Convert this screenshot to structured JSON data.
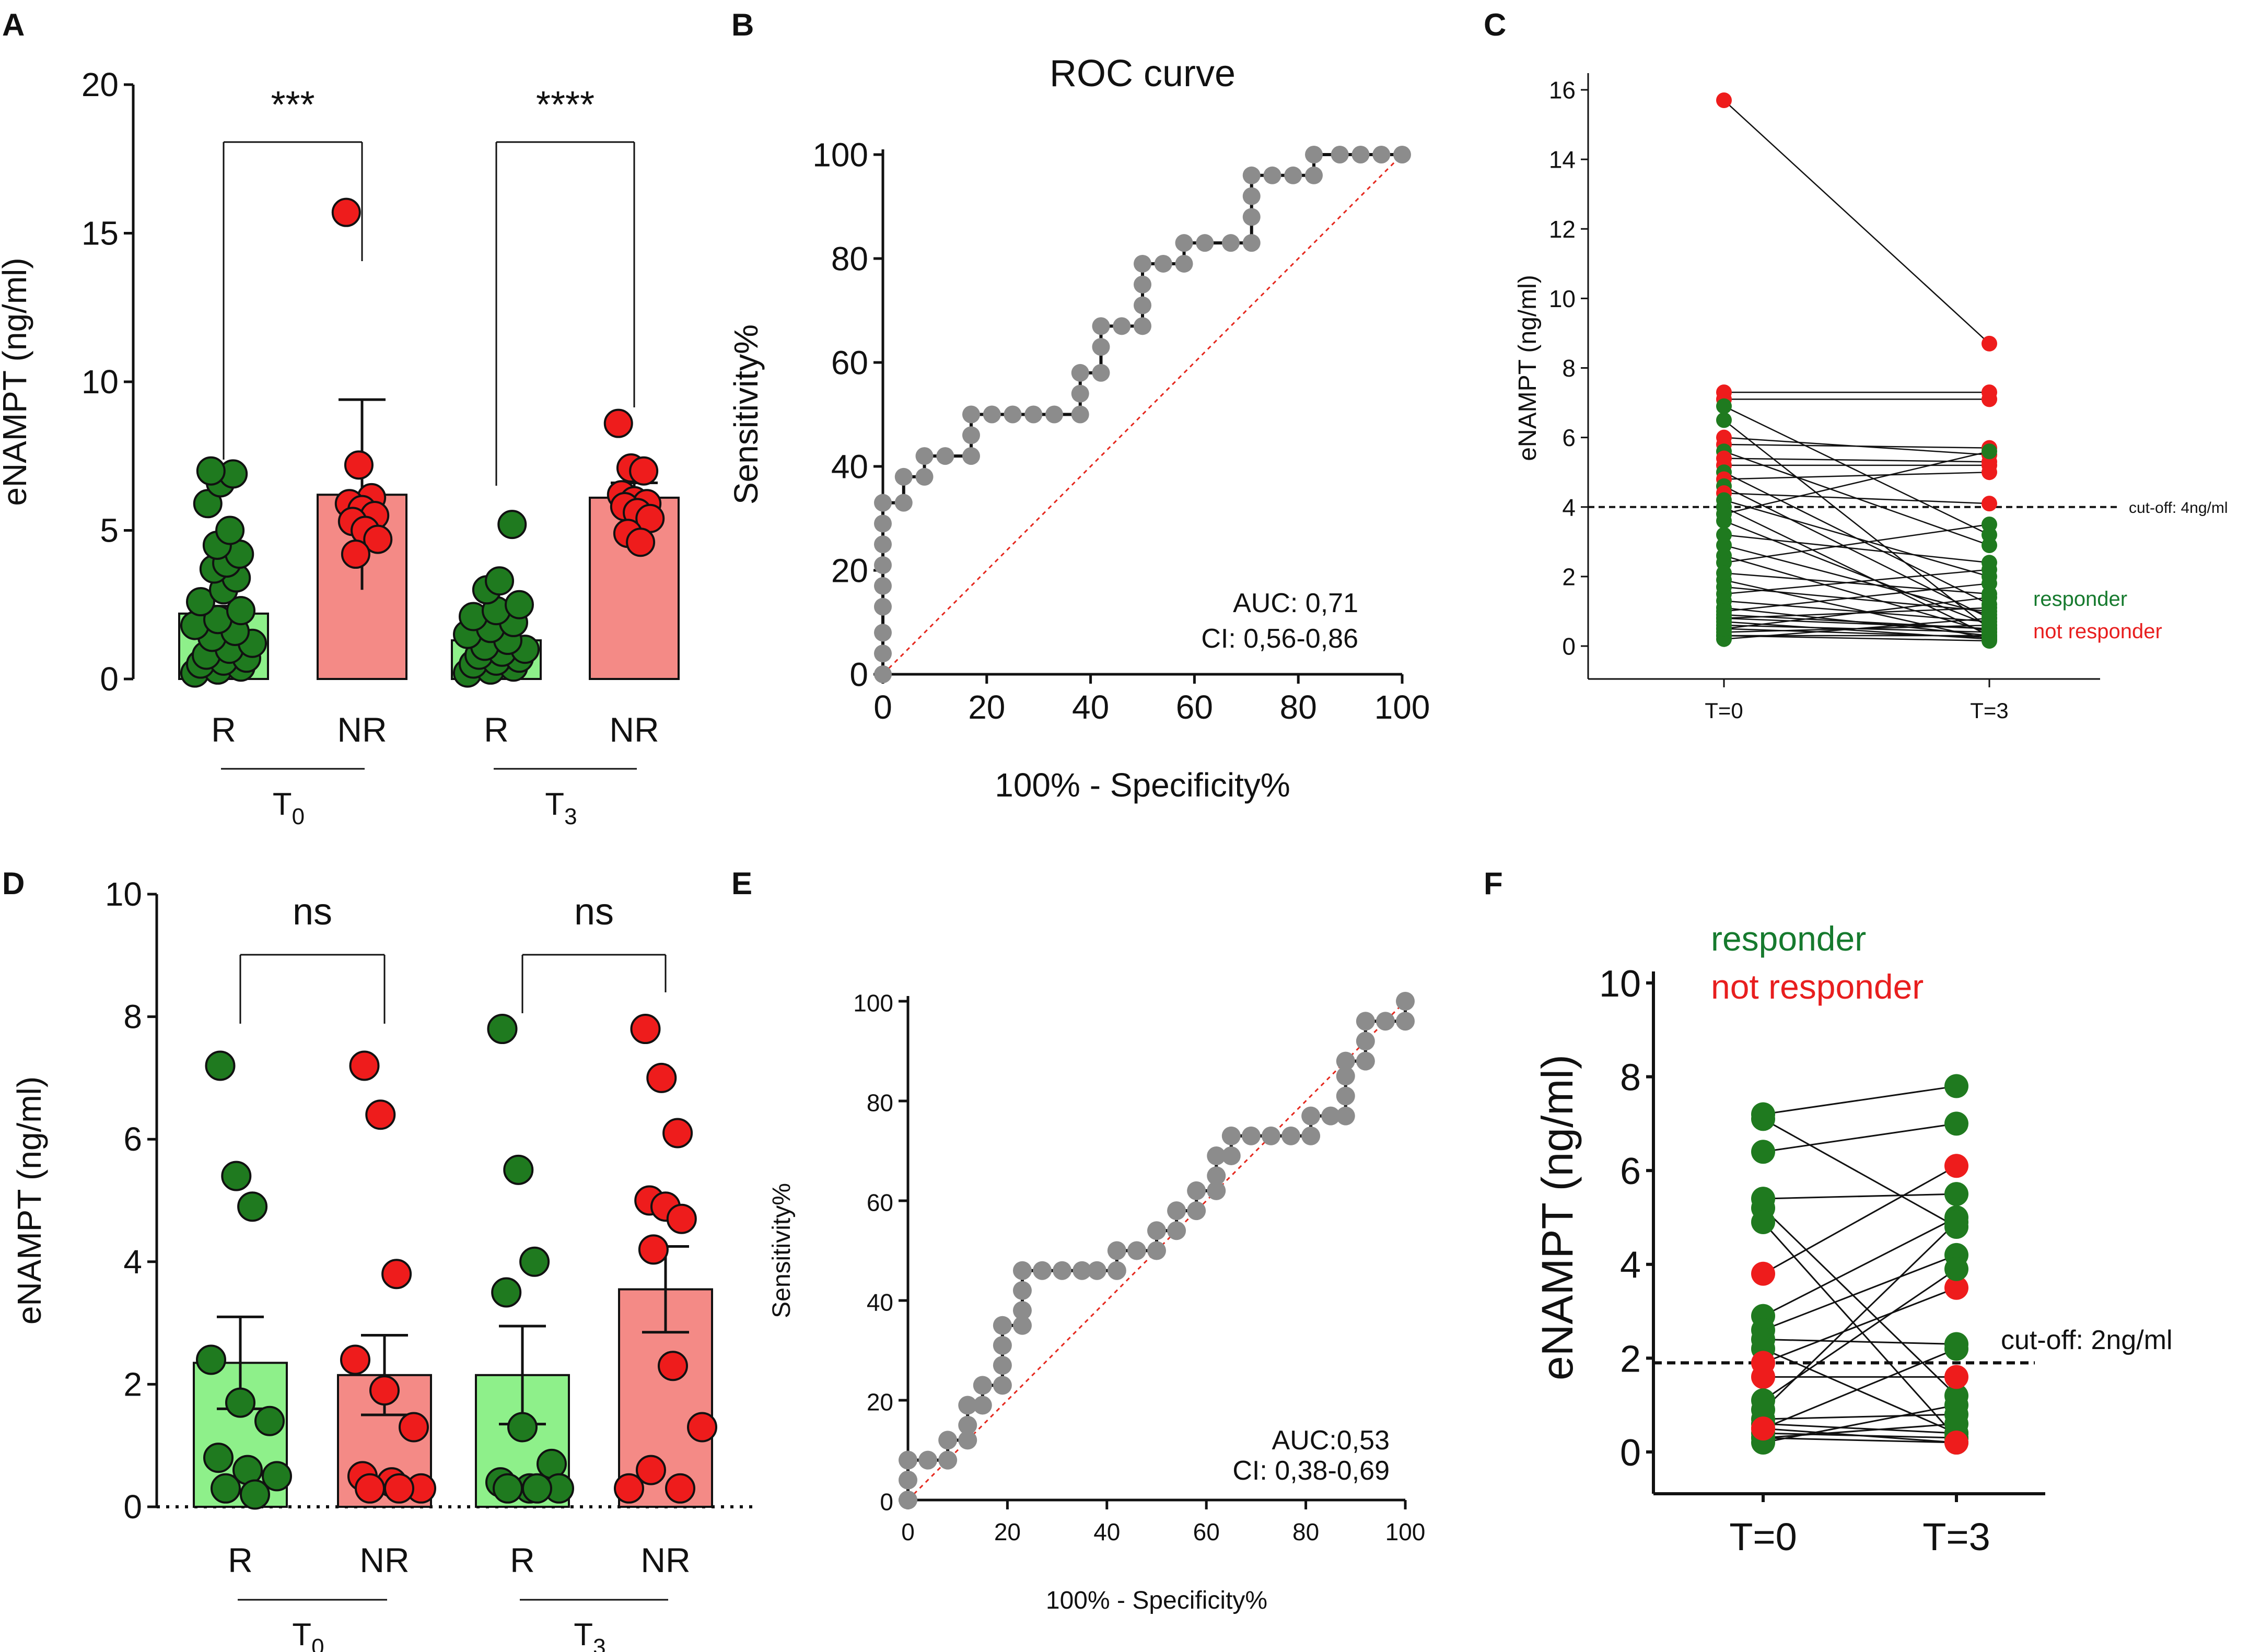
{
  "colors": {
    "green": "#1f7a1f",
    "red": "#ee1c1c",
    "green_bar": "#8ef08a",
    "red_bar": "#f48a86",
    "roc_marker": "#8c8c8c",
    "reference": "#e5281e",
    "legend_green": "#167a2e",
    "legend_red": "#e81e1e"
  },
  "chart_data": [
    {
      "panel": "A",
      "type": "bar",
      "ylabel": "eNAMPT (ng/ml)",
      "ylim": [
        0,
        20
      ],
      "yticks": [
        0,
        5,
        10,
        15,
        20
      ],
      "categories": [
        "R",
        "NR",
        "R",
        "NR"
      ],
      "groups": [
        {
          "label": "T",
          "sub": "0"
        },
        {
          "label": "T",
          "sub": "3"
        }
      ],
      "values": [
        2.2,
        6.2,
        1.3,
        6.1
      ],
      "errors": [
        0.25,
        3.2,
        0.15,
        0.5
      ],
      "points": [
        [
          0.2,
          0.3,
          0.4,
          0.5,
          0.6,
          0.7,
          0.8,
          1.0,
          1.2,
          1.4,
          1.6,
          1.8,
          2.0,
          2.3,
          2.6,
          3.0,
          3.4,
          3.7,
          3.9,
          4.2,
          4.5,
          5.0,
          5.9,
          6.6,
          6.9,
          7.0
        ],
        [
          15.7,
          7.2,
          6.1,
          5.9,
          5.7,
          5.5,
          5.3,
          5.0,
          4.7,
          4.2
        ],
        [
          0.2,
          0.3,
          0.4,
          0.5,
          0.6,
          0.7,
          0.8,
          0.9,
          1.0,
          1.1,
          1.3,
          1.5,
          1.7,
          1.9,
          2.1,
          2.3,
          2.5,
          3.0,
          3.3,
          5.2
        ],
        [
          8.6,
          7.1,
          7.0,
          6.2,
          6.0,
          5.9,
          5.8,
          5.6,
          5.4,
          4.9,
          4.6
        ]
      ],
      "significance": [
        "***",
        "****"
      ]
    },
    {
      "panel": "B",
      "type": "line",
      "title": "ROC curve",
      "xlabel": "100% - Specificity%",
      "ylabel": "Sensitivity%",
      "xlim": [
        0,
        100
      ],
      "ylim": [
        0,
        100
      ],
      "xticks": [
        0,
        20,
        40,
        60,
        80,
        100
      ],
      "yticks": [
        0,
        20,
        40,
        60,
        80,
        100
      ],
      "roc": [
        [
          0,
          0
        ],
        [
          0,
          4
        ],
        [
          0,
          8
        ],
        [
          0,
          13
        ],
        [
          0,
          17
        ],
        [
          0,
          21
        ],
        [
          0,
          25
        ],
        [
          0,
          29
        ],
        [
          0,
          33
        ],
        [
          4,
          33
        ],
        [
          4,
          38
        ],
        [
          8,
          38
        ],
        [
          8,
          42
        ],
        [
          12,
          42
        ],
        [
          17,
          42
        ],
        [
          17,
          46
        ],
        [
          17,
          50
        ],
        [
          21,
          50
        ],
        [
          25,
          50
        ],
        [
          29,
          50
        ],
        [
          33,
          50
        ],
        [
          38,
          50
        ],
        [
          38,
          54
        ],
        [
          38,
          58
        ],
        [
          42,
          58
        ],
        [
          42,
          63
        ],
        [
          42,
          67
        ],
        [
          46,
          67
        ],
        [
          50,
          67
        ],
        [
          50,
          71
        ],
        [
          50,
          75
        ],
        [
          50,
          79
        ],
        [
          54,
          79
        ],
        [
          58,
          79
        ],
        [
          58,
          83
        ],
        [
          62,
          83
        ],
        [
          67,
          83
        ],
        [
          71,
          83
        ],
        [
          71,
          88
        ],
        [
          71,
          92
        ],
        [
          71,
          96
        ],
        [
          75,
          96
        ],
        [
          79,
          96
        ],
        [
          83,
          96
        ],
        [
          83,
          100
        ],
        [
          88,
          100
        ],
        [
          92,
          100
        ],
        [
          96,
          100
        ],
        [
          100,
          100
        ]
      ],
      "annotations": [
        "AUC: 0,71",
        "CI: 0,56-0,86"
      ]
    },
    {
      "panel": "C",
      "type": "line",
      "ylabel": "eNAMPT (ng/ml)",
      "ylim": [
        0,
        16
      ],
      "yticks": [
        0,
        2,
        4,
        6,
        8,
        10,
        12,
        14,
        16
      ],
      "categories": [
        "T=0",
        "T=3"
      ],
      "cutoff": 4,
      "cutoff_label": "cut-off: 4ng/ml",
      "legend": [
        "responder",
        "not responder"
      ],
      "pairs": [
        {
          "t0": 15.7,
          "t3": 8.7,
          "g": "nr"
        },
        {
          "t0": 7.3,
          "t3": 7.3,
          "g": "nr"
        },
        {
          "t0": 7.1,
          "t3": 7.1,
          "g": "nr"
        },
        {
          "t0": 6.9,
          "t3": 3.2,
          "g": "r"
        },
        {
          "t0": 6.5,
          "t3": 0.5,
          "g": "r"
        },
        {
          "t0": 6.0,
          "t3": 5.5,
          "g": "nr"
        },
        {
          "t0": 5.8,
          "t3": 5.7,
          "g": "nr"
        },
        {
          "t0": 5.6,
          "t3": 2.9,
          "g": "r"
        },
        {
          "t0": 5.4,
          "t3": 5.3,
          "g": "nr"
        },
        {
          "t0": 5.2,
          "t3": 5.2,
          "g": "nr"
        },
        {
          "t0": 5.0,
          "t3": 1.2,
          "g": "r"
        },
        {
          "t0": 4.8,
          "t3": 5.0,
          "g": "nr"
        },
        {
          "t0": 4.6,
          "t3": 0.8,
          "g": "r"
        },
        {
          "t0": 4.4,
          "t3": 4.1,
          "g": "nr"
        },
        {
          "t0": 4.2,
          "t3": 2.0,
          "g": "r"
        },
        {
          "t0": 4.0,
          "t3": 0.3,
          "g": "r"
        },
        {
          "t0": 3.8,
          "t3": 5.6,
          "g": "r"
        },
        {
          "t0": 3.6,
          "t3": 0.6,
          "g": "r"
        },
        {
          "t0": 3.2,
          "t3": 2.4,
          "g": "r"
        },
        {
          "t0": 2.9,
          "t3": 0.9,
          "g": "r"
        },
        {
          "t0": 2.6,
          "t3": 0.4,
          "g": "r"
        },
        {
          "t0": 2.4,
          "t3": 3.5,
          "g": "r"
        },
        {
          "t0": 2.1,
          "t3": 1.5,
          "g": "r"
        },
        {
          "t0": 1.9,
          "t3": 0.2,
          "g": "r"
        },
        {
          "t0": 1.7,
          "t3": 1.0,
          "g": "r"
        },
        {
          "t0": 1.5,
          "t3": 2.2,
          "g": "r"
        },
        {
          "t0": 1.3,
          "t3": 0.7,
          "g": "r"
        },
        {
          "t0": 1.1,
          "t3": 0.3,
          "g": "r"
        },
        {
          "t0": 1.0,
          "t3": 1.8,
          "g": "r"
        },
        {
          "t0": 0.9,
          "t3": 0.5,
          "g": "r"
        },
        {
          "t0": 0.8,
          "t3": 1.1,
          "g": "r"
        },
        {
          "t0": 0.7,
          "t3": 0.2,
          "g": "r"
        },
        {
          "t0": 0.6,
          "t3": 0.4,
          "g": "r"
        },
        {
          "t0": 0.5,
          "t3": 1.4,
          "g": "r"
        },
        {
          "t0": 0.4,
          "t3": 0.6,
          "g": "r"
        },
        {
          "t0": 0.3,
          "t3": 0.3,
          "g": "r"
        },
        {
          "t0": 0.2,
          "t3": 0.8,
          "g": "r"
        },
        {
          "t0": 0.3,
          "t3": 0.15,
          "g": "r"
        },
        {
          "t0": 0.5,
          "t3": 0.25,
          "g": "r"
        },
        {
          "t0": 0.8,
          "t3": 0.5,
          "g": "r"
        }
      ]
    },
    {
      "panel": "D",
      "type": "bar",
      "ylabel": "eNAMPT (ng/ml)",
      "ylim": [
        0,
        10
      ],
      "yticks": [
        0,
        2,
        4,
        6,
        8,
        10
      ],
      "categories": [
        "R",
        "NR",
        "R",
        "NR"
      ],
      "groups": [
        {
          "label": "T",
          "sub": "0"
        },
        {
          "label": "T",
          "sub": "3"
        }
      ],
      "values": [
        2.35,
        2.15,
        2.15,
        3.55
      ],
      "errors": [
        0.75,
        0.65,
        0.8,
        0.7
      ],
      "points": [
        [
          7.2,
          5.4,
          4.9,
          2.4,
          1.7,
          1.4,
          0.8,
          0.6,
          0.5,
          0.3,
          0.2
        ],
        [
          7.2,
          6.4,
          3.8,
          2.4,
          1.9,
          1.3,
          0.5,
          0.4,
          0.3,
          0.3,
          0.3
        ],
        [
          7.8,
          5.5,
          4.0,
          3.5,
          1.3,
          0.7,
          0.4,
          0.3,
          0.3,
          0.3,
          0.3
        ],
        [
          7.8,
          7.0,
          6.1,
          5.0,
          4.9,
          4.7,
          4.2,
          2.3,
          1.3,
          0.6,
          0.3,
          0.3
        ]
      ],
      "significance": [
        "ns",
        "ns"
      ]
    },
    {
      "panel": "E",
      "type": "line",
      "xlabel": "100% - Specificity%",
      "ylabel": "Sensitivity%",
      "xlim": [
        0,
        100
      ],
      "ylim": [
        0,
        100
      ],
      "xticks": [
        0,
        20,
        40,
        60,
        80,
        100
      ],
      "yticks": [
        0,
        20,
        40,
        60,
        80,
        100
      ],
      "roc": [
        [
          0,
          0
        ],
        [
          0,
          4
        ],
        [
          0,
          8
        ],
        [
          4,
          8
        ],
        [
          8,
          8
        ],
        [
          8,
          12
        ],
        [
          12,
          12
        ],
        [
          12,
          15
        ],
        [
          12,
          19
        ],
        [
          15,
          19
        ],
        [
          15,
          23
        ],
        [
          19,
          23
        ],
        [
          19,
          27
        ],
        [
          19,
          31
        ],
        [
          19,
          35
        ],
        [
          23,
          35
        ],
        [
          23,
          38
        ],
        [
          23,
          42
        ],
        [
          23,
          46
        ],
        [
          27,
          46
        ],
        [
          31,
          46
        ],
        [
          35,
          46
        ],
        [
          38,
          46
        ],
        [
          42,
          46
        ],
        [
          42,
          50
        ],
        [
          46,
          50
        ],
        [
          50,
          50
        ],
        [
          50,
          54
        ],
        [
          54,
          54
        ],
        [
          54,
          58
        ],
        [
          58,
          58
        ],
        [
          58,
          62
        ],
        [
          62,
          62
        ],
        [
          62,
          65
        ],
        [
          62,
          69
        ],
        [
          65,
          69
        ],
        [
          65,
          73
        ],
        [
          69,
          73
        ],
        [
          73,
          73
        ],
        [
          77,
          73
        ],
        [
          81,
          73
        ],
        [
          81,
          77
        ],
        [
          85,
          77
        ],
        [
          88,
          77
        ],
        [
          88,
          81
        ],
        [
          88,
          85
        ],
        [
          88,
          88
        ],
        [
          92,
          88
        ],
        [
          92,
          92
        ],
        [
          92,
          96
        ],
        [
          96,
          96
        ],
        [
          100,
          96
        ],
        [
          100,
          100
        ]
      ],
      "annotations": [
        "AUC:0,53",
        "CI: 0,38-0,69"
      ]
    },
    {
      "panel": "F",
      "type": "line",
      "ylabel": "eNAMPT (ng/ml)",
      "ylim": [
        0,
        10
      ],
      "yticks": [
        0,
        2,
        4,
        6,
        8,
        10
      ],
      "categories": [
        "T=0",
        "T=3"
      ],
      "cutoff": 1.9,
      "cutoff_label": "cut-off: 2ng/ml",
      "legend": [
        "responder",
        "not responder"
      ],
      "pairs": [
        {
          "t0": 7.2,
          "t3": 7.8,
          "g": "r"
        },
        {
          "t0": 7.1,
          "t3": 4.8,
          "g": "r"
        },
        {
          "t0": 6.4,
          "t3": 7.0,
          "g": "r"
        },
        {
          "t0": 5.4,
          "t3": 5.5,
          "g": "r"
        },
        {
          "t0": 5.2,
          "t3": 1.2,
          "g": "r"
        },
        {
          "t0": 4.9,
          "t3": 0.3,
          "g": "r"
        },
        {
          "t0": 3.8,
          "t3": 6.1,
          "g": "nr"
        },
        {
          "t0": 2.9,
          "t3": 5.0,
          "g": "r"
        },
        {
          "t0": 2.6,
          "t3": 4.2,
          "g": "r"
        },
        {
          "t0": 2.4,
          "t3": 2.3,
          "g": "r"
        },
        {
          "t0": 2.2,
          "t3": 0.4,
          "g": "r"
        },
        {
          "t0": 1.9,
          "t3": 3.5,
          "g": "nr"
        },
        {
          "t0": 1.6,
          "t3": 1.6,
          "g": "nr"
        },
        {
          "t0": 1.1,
          "t3": 3.9,
          "g": "r"
        },
        {
          "t0": 0.9,
          "t3": 4.9,
          "g": "r"
        },
        {
          "t0": 0.7,
          "t3": 0.8,
          "g": "r"
        },
        {
          "t0": 0.6,
          "t3": 0.4,
          "g": "r"
        },
        {
          "t0": 0.5,
          "t3": 2.2,
          "g": "r"
        },
        {
          "t0": 0.4,
          "t3": 0.3,
          "g": "r"
        },
        {
          "t0": 0.3,
          "t3": 0.6,
          "g": "r"
        },
        {
          "t0": 0.3,
          "t3": 0.2,
          "g": "r"
        },
        {
          "t0": 0.2,
          "t3": 1.0,
          "g": "r"
        },
        {
          "t0": 0.5,
          "t3": 0.2,
          "g": "nr"
        }
      ]
    }
  ]
}
